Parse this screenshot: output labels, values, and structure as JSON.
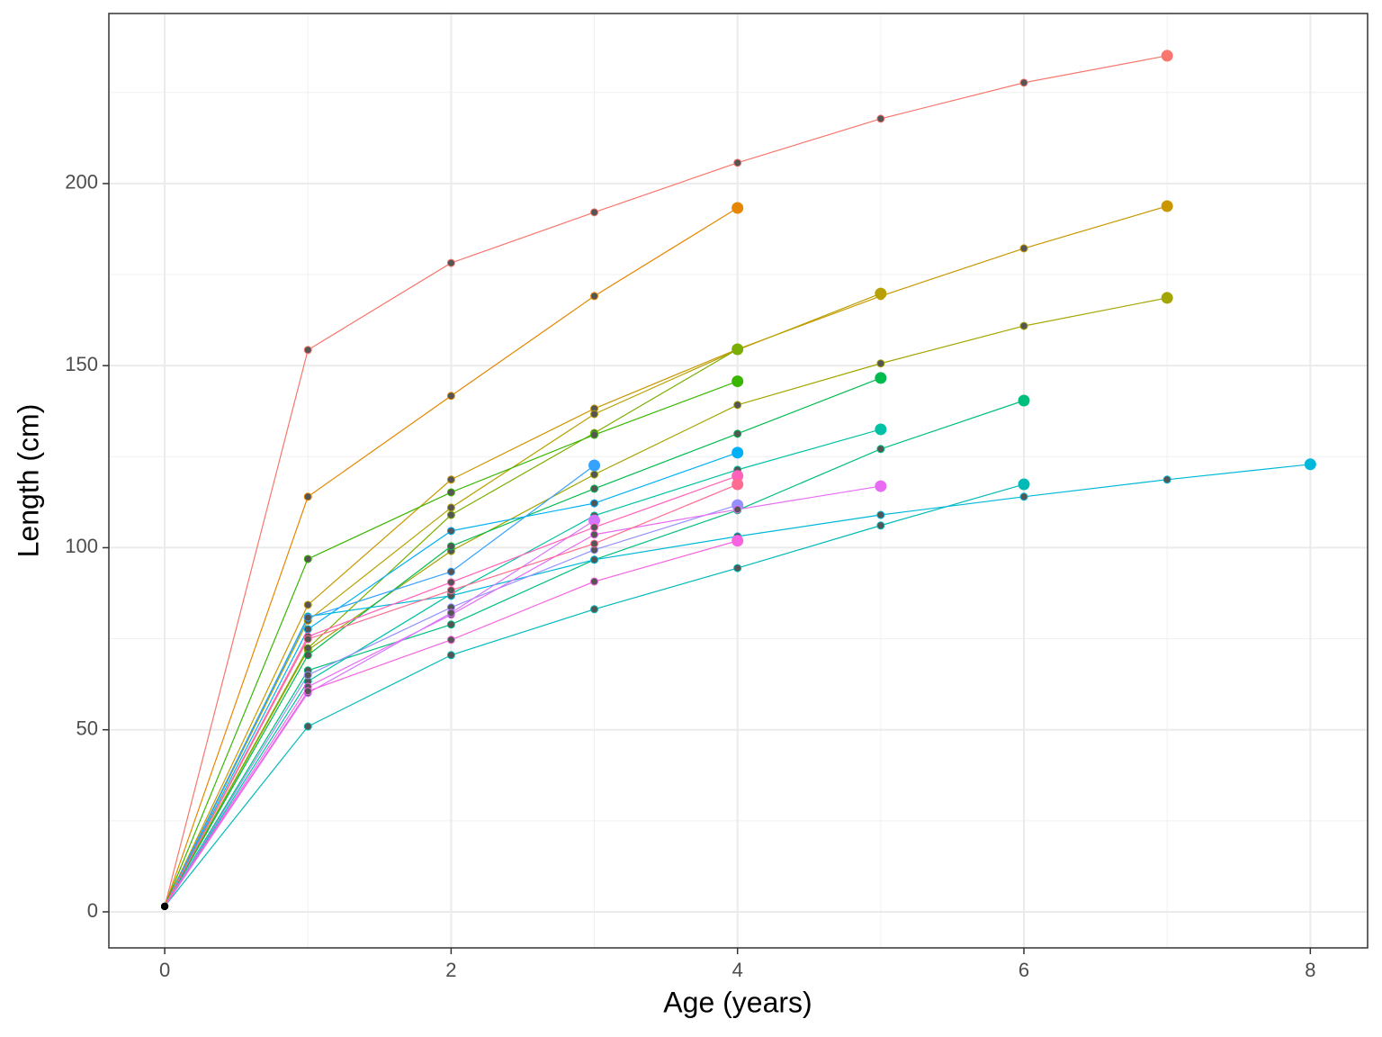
{
  "chart_data": {
    "type": "line",
    "xlabel": "Age (years)",
    "ylabel": "Length (cm)",
    "x": [
      0,
      1,
      2,
      3,
      4,
      5,
      6,
      7,
      8
    ],
    "xlim": [
      -0.39,
      8.4
    ],
    "ylim": [
      -9.9,
      246.7
    ],
    "xticks": [
      0,
      2,
      4,
      6,
      8
    ],
    "yticks": [
      0,
      50,
      100,
      150,
      200
    ],
    "x_minor_ticks": [
      1,
      3,
      5,
      7
    ],
    "y_minor_ticks": [
      25,
      75,
      125,
      175,
      225
    ],
    "grid": true,
    "series": [
      {
        "color": "#F8766D",
        "values": [
          1.5,
          154.3,
          178.2,
          192.1,
          205.7,
          217.8,
          227.7,
          235.1,
          null
        ]
      },
      {
        "color": "#E58700",
        "values": [
          1.5,
          114,
          141.7,
          169.1,
          193.3,
          null,
          null,
          null,
          null
        ]
      },
      {
        "color": "#C99800",
        "values": [
          1.5,
          84.3,
          118.7,
          138.2,
          154.5,
          169.1,
          182.2,
          193.8,
          null
        ]
      },
      {
        "color": "#B7A000",
        "values": [
          1.5,
          80,
          111,
          136.7,
          154.3,
          169.8,
          null,
          null,
          null
        ]
      },
      {
        "color": "#A3A500",
        "values": [
          1.5,
          71.9,
          99.1,
          120.1,
          139.2,
          150.6,
          160.9,
          168.6,
          null
        ]
      },
      {
        "color": "#7CAE00",
        "values": [
          1.5,
          72.4,
          109,
          131.5,
          154.5,
          null,
          null,
          null,
          null
        ]
      },
      {
        "color": "#39B600",
        "values": [
          1.5,
          96.9,
          115.2,
          131,
          145.7,
          null,
          null,
          null,
          null
        ]
      },
      {
        "color": "#00BB4E",
        "values": [
          1.5,
          70.5,
          100.4,
          116.2,
          131.3,
          146.6,
          null,
          null,
          null
        ]
      },
      {
        "color": "#00BF7D",
        "values": [
          1.5,
          66.3,
          78.9,
          96.7,
          110.3,
          127.1,
          140.4,
          null,
          null
        ]
      },
      {
        "color": "#00C1A3",
        "values": [
          1.5,
          63.3,
          87.3,
          108.8,
          121.4,
          132.5,
          null,
          null,
          null
        ]
      },
      {
        "color": "#00BAB8",
        "values": [
          1.5,
          50.9,
          70.5,
          83.1,
          94.4,
          106.1,
          117.4,
          null,
          null
        ]
      },
      {
        "color": "#00B8D9",
        "values": [
          1.5,
          81.1,
          86.8,
          96.7,
          103.1,
          109,
          114,
          118.7,
          122.9
        ]
      },
      {
        "color": "#00B0F6",
        "values": [
          1.5,
          77.6,
          104.6,
          112.2,
          126.1,
          null,
          null,
          null,
          null
        ]
      },
      {
        "color": "#35A2FF",
        "values": [
          1.5,
          80.8,
          93.4,
          122.6,
          null,
          null,
          null,
          null,
          null
        ]
      },
      {
        "color": "#9590FF",
        "values": [
          1.5,
          65,
          83.6,
          99.4,
          111.7,
          null,
          null,
          null,
          null
        ]
      },
      {
        "color": "#E76BF3",
        "values": [
          1.5,
          61.8,
          81.6,
          103.6,
          110.5,
          116.9,
          null,
          null,
          null
        ]
      },
      {
        "color": "#D575FE",
        "values": [
          1.5,
          60.1,
          82.1,
          107.5,
          null,
          null,
          null,
          null,
          null
        ]
      },
      {
        "color": "#FF62BC",
        "values": [
          1.5,
          75.6,
          90.5,
          105.6,
          119.7,
          null,
          null,
          null,
          null
        ]
      },
      {
        "color": "#FF6C91",
        "values": [
          1.5,
          74.9,
          88.3,
          101.1,
          117.4,
          null,
          null,
          null,
          null
        ]
      },
      {
        "color": "#F763E0",
        "values": [
          1.5,
          60.6,
          74.7,
          90.7,
          101.9,
          null,
          null,
          null,
          null
        ]
      }
    ]
  }
}
